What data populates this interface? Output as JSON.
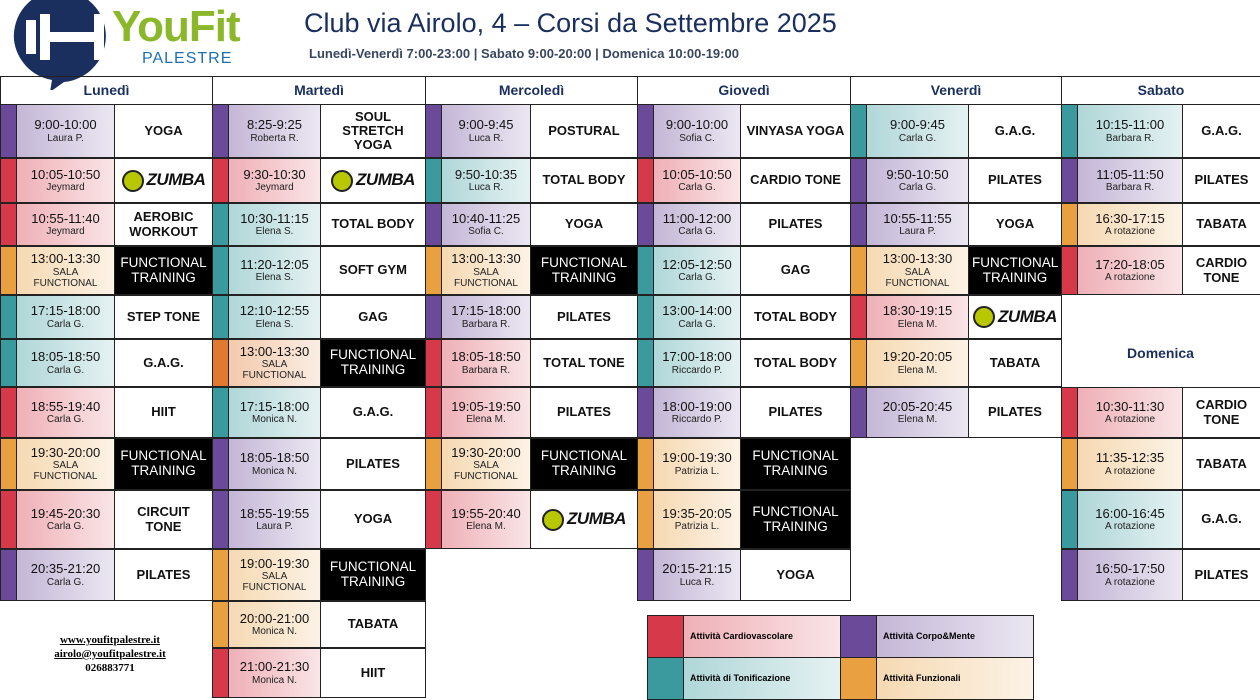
{
  "header": {
    "brand": "YouFit",
    "brand_sub": "PALESTRE",
    "title": "Club via Airolo, 4 – Corsi da Settembre 2025",
    "hours": "Lunedì-Venerdì 7:00-23:00 | Sabato 9:00-20:00 | Domenica 10:00-19:00"
  },
  "days": [
    {
      "name": "Lunedì",
      "classes": [
        {
          "time": "9:00-10:00",
          "teacher": "Laura P.",
          "name": "YOGA",
          "color": "#6b4a9a"
        },
        {
          "time": "10:05-10:50",
          "teacher": "Jeymard",
          "name": "ZUMBA",
          "color": "#d63a4a",
          "name_style": "logo"
        },
        {
          "time": "10:55-11:40",
          "teacher": "Jeymard",
          "name": "AEROBIC WORKOUT",
          "color": "#d63a4a"
        },
        {
          "time": "13:00-13:30",
          "teacher": "SALA\nFUNCTIONAL",
          "name": "FUNCTIONAL TRAINING",
          "color": "#e8a040",
          "name_style": "dark"
        },
        {
          "time": "17:15-18:00",
          "teacher": "Carla G.",
          "name": "STEP TONE",
          "color": "#3a9a9e"
        },
        {
          "time": "18:05-18:50",
          "teacher": "Carla G.",
          "name": "G.A.G.",
          "color": "#3a9a9e"
        },
        {
          "time": "18:55-19:40",
          "teacher": "Carla G.",
          "name": "HIIT",
          "color": "#d63a4a"
        },
        {
          "time": "19:30-20:00",
          "teacher": "SALA\nFUNCTIONAL",
          "name": "FUNCTIONAL TRAINING",
          "color": "#e8a040",
          "name_style": "dark"
        },
        {
          "time": "19:45-20:30",
          "teacher": "Carla G.",
          "name": "CIRCUIT TONE",
          "color": "#d63a4a"
        },
        {
          "time": "20:35-21:20",
          "teacher": "Carla G.",
          "name": "PILATES",
          "color": "#6b4a9a"
        }
      ]
    },
    {
      "name": "Martedì",
      "classes": [
        {
          "time": "8:25-9:25",
          "teacher": "Roberta R.",
          "name": "SOUL STRETCH YOGA",
          "color": "#6b4a9a"
        },
        {
          "time": "9:30-10:30",
          "teacher": "Jeymard",
          "name": "ZUMBA",
          "color": "#d63a4a",
          "name_style": "logo"
        },
        {
          "time": "10:30-11:15",
          "teacher": "Elena S.",
          "name": "TOTAL BODY",
          "color": "#3a9a9e"
        },
        {
          "time": "11:20-12:05",
          "teacher": "Elena S.",
          "name": "SOFT GYM",
          "color": "#3a9a9e"
        },
        {
          "time": "12:10-12:55",
          "teacher": "Elena S.",
          "name": "GAG",
          "color": "#3a9a9e"
        },
        {
          "time": "13:00-13:30",
          "teacher": "SALA\nFUNCTIONAL",
          "name": "FUNCTIONAL TRAINING",
          "color": "#e07a30",
          "name_style": "dark"
        },
        {
          "time": "17:15-18:00",
          "teacher": "Monica N.",
          "name": "G.A.G.",
          "color": "#3a9a9e"
        },
        {
          "time": "18:05-18:50",
          "teacher": "Monica N.",
          "name": "PILATES",
          "color": "#6b4a9a"
        },
        {
          "time": "18:55-19:55",
          "teacher": "Laura P.",
          "name": "YOGA",
          "color": "#6b4a9a"
        },
        {
          "time": "19:00-19:30",
          "teacher": "SALA\nFUNCTIONAL",
          "name": "FUNCTIONAL TRAINING",
          "color": "#e8a040",
          "name_style": "dark"
        },
        {
          "time": "20:00-21:00",
          "teacher": "Monica N.",
          "name": "TABATA",
          "color": "#e8a040"
        },
        {
          "time": "21:00-21:30",
          "teacher": "Monica N.",
          "name": "HIIT",
          "color": "#d63a4a"
        }
      ]
    },
    {
      "name": "Mercoledì",
      "classes": [
        {
          "time": "9:00-9:45",
          "teacher": "Luca R.",
          "name": "POSTURAL",
          "color": "#6b4a9a"
        },
        {
          "time": "9:50-10:35",
          "teacher": "Luca R.",
          "name": "TOTAL BODY",
          "color": "#3a9a9e"
        },
        {
          "time": "10:40-11:25",
          "teacher": "Sofia C.",
          "name": "YOGA",
          "color": "#6b4a9a"
        },
        {
          "time": "13:00-13:30",
          "teacher": "SALA\nFUNCTIONAL",
          "name": "FUNCTIONAL TRAINING",
          "color": "#e8a040",
          "name_style": "dark"
        },
        {
          "time": "17:15-18:00",
          "teacher": "Barbara R.",
          "name": "PILATES",
          "color": "#6b4a9a"
        },
        {
          "time": "18:05-18:50",
          "teacher": "Barbara R.",
          "name": "TOTAL TONE",
          "color": "#d63a4a"
        },
        {
          "time": "19:05-19:50",
          "teacher": "Elena M.",
          "name": "PILATES",
          "color": "#d63a4a"
        },
        {
          "time": "19:30-20:00",
          "teacher": "SALA\nFUNCTIONAL",
          "name": "FUNCTIONAL TRAINING",
          "color": "#e8a040",
          "name_style": "dark"
        },
        {
          "time": "19:55-20:40",
          "teacher": "Elena M.",
          "name": "ZUMBA",
          "color": "#d63a4a",
          "name_style": "logo"
        }
      ]
    },
    {
      "name": "Giovedì",
      "classes": [
        {
          "time": "9:00-10:00",
          "teacher": "Sofia C.",
          "name": "VINYASA YOGA",
          "color": "#6b4a9a"
        },
        {
          "time": "10:05-10:50",
          "teacher": "Carla G.",
          "name": "CARDIO TONE",
          "color": "#d63a4a"
        },
        {
          "time": "11:00-12:00",
          "teacher": "Carla G.",
          "name": "PILATES",
          "color": "#6b4a9a"
        },
        {
          "time": "12:05-12:50",
          "teacher": "Carla G.",
          "name": "GAG",
          "color": "#3a9a9e"
        },
        {
          "time": "13:00-14:00",
          "teacher": "Carla G.",
          "name": "TOTAL BODY",
          "color": "#3a9a9e"
        },
        {
          "time": "17:00-18:00",
          "teacher": "Riccardo P.",
          "name": "TOTAL BODY",
          "color": "#3a9a9e"
        },
        {
          "time": "18:00-19:00",
          "teacher": "Riccardo P.",
          "name": "PILATES",
          "color": "#6b4a9a"
        },
        {
          "time": "19:00-19:30",
          "teacher": "Patrizia L.",
          "name": "FUNCTIONAL TRAINING",
          "color": "#e8a040",
          "name_style": "dark"
        },
        {
          "time": "19:35-20:05",
          "teacher": "Patrizia L.",
          "name": "FUNCTIONAL TRAINING",
          "color": "#e8a040",
          "name_style": "dark"
        },
        {
          "time": "20:15-21:15",
          "teacher": "Luca R.",
          "name": "YOGA",
          "color": "#6b4a9a"
        }
      ]
    },
    {
      "name": "Venerdì",
      "classes": [
        {
          "time": "9:00-9:45",
          "teacher": "Carla G.",
          "name": "G.A.G.",
          "color": "#3a9a9e"
        },
        {
          "time": "9:50-10:50",
          "teacher": "Carla G.",
          "name": "PILATES",
          "color": "#6b4a9a"
        },
        {
          "time": "10:55-11:55",
          "teacher": "Laura P.",
          "name": "YOGA",
          "color": "#6b4a9a"
        },
        {
          "time": "13:00-13:30",
          "teacher": "SALA\nFUNCTIONAL",
          "name": "FUNCTIONAL TRAINING",
          "color": "#e8a040",
          "name_style": "dark"
        },
        {
          "time": "18:30-19:15",
          "teacher": "Elena M.",
          "name": "ZUMBA",
          "color": "#d63a4a",
          "name_style": "logo"
        },
        {
          "time": "19:20-20:05",
          "teacher": "Elena M.",
          "name": "TABATA",
          "color": "#e8a040"
        },
        {
          "time": "20:05-20:45",
          "teacher": "Elena M.",
          "name": "PILATES",
          "color": "#6b4a9a"
        }
      ]
    },
    {
      "name": "Sabato",
      "classes": [
        {
          "time": "10:15-11:00",
          "teacher": "Barbara R.",
          "name": "G.A.G.",
          "color": "#3a9a9e"
        },
        {
          "time": "11:05-11:50",
          "teacher": "Barbara R.",
          "name": "PILATES",
          "color": "#6b4a9a"
        },
        {
          "time": "16:30-17:15",
          "teacher": "A rotazione",
          "name": "TABATA",
          "color": "#e8a040"
        },
        {
          "time": "17:20-18:05",
          "teacher": "A rotazione",
          "name": "CARDIO TONE",
          "color": "#d63a4a"
        }
      ]
    }
  ],
  "sunday": {
    "name": "Domenica",
    "classes": [
      {
        "time": "10:30-11:30",
        "teacher": "A rotazione",
        "name": "CARDIO TONE",
        "color": "#d63a4a"
      },
      {
        "time": "11:35-12:35",
        "teacher": "A rotazione",
        "name": "TABATA",
        "color": "#e8a040"
      },
      {
        "time": "16:00-16:45",
        "teacher": "A rotazione",
        "name": "G.A.G.",
        "color": "#3a9a9e"
      },
      {
        "time": "16:50-17:50",
        "teacher": "A rotazione",
        "name": "PILATES",
        "color": "#6b4a9a"
      }
    ]
  },
  "legend": [
    {
      "label": "Attività Cardiovascolare",
      "color": "#d63a4a"
    },
    {
      "label": "Attività Corpo&Mente",
      "color": "#6b4a9a"
    },
    {
      "label": "Attività di Tonificazione",
      "color": "#3a9a9e"
    },
    {
      "label": "Attività Funzionali",
      "color": "#e8a040"
    }
  ],
  "footer": [
    "www.youfitpalestre.it",
    "airolo@youfitpalestre.it",
    "026883771"
  ]
}
